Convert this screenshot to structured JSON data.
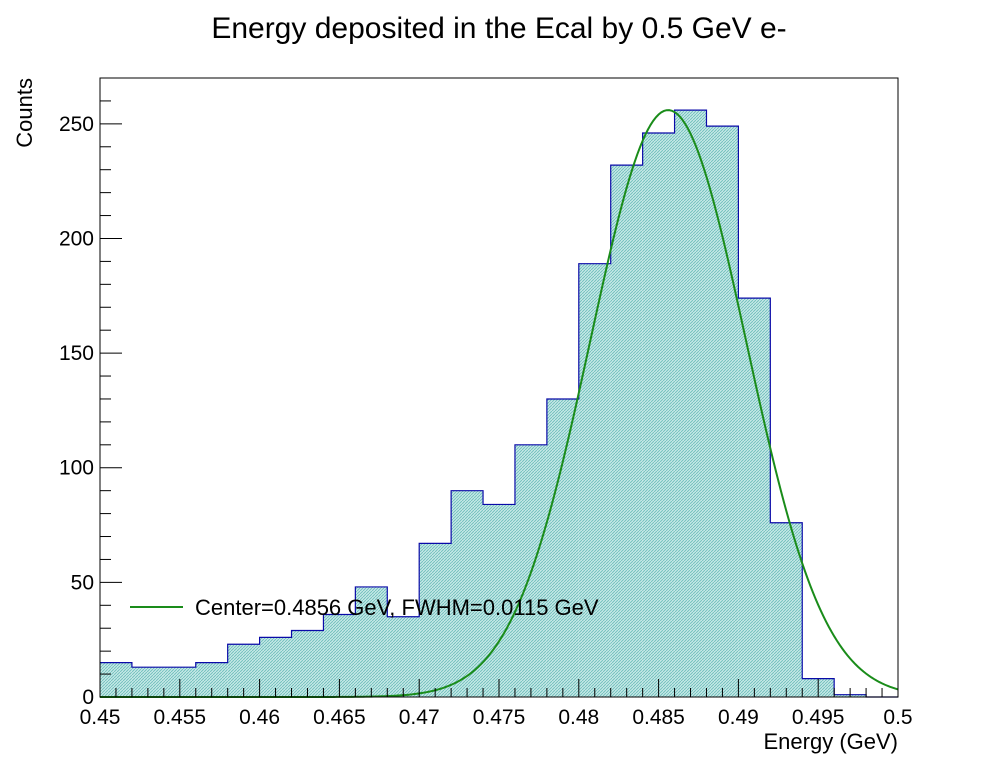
{
  "chart_data": {
    "type": "bar",
    "title": "Energy deposited in the Ecal by 0.5 GeV e-",
    "xlabel": "Energy (GeV)",
    "ylabel": "Counts",
    "xlim": [
      0.45,
      0.5
    ],
    "ylim": [
      0,
      270
    ],
    "grid": false,
    "bin_width": 0.002,
    "bin_edges_start": 0.45,
    "x_ticks": [
      "0.45",
      "0.455",
      "0.46",
      "0.465",
      "0.47",
      "0.475",
      "0.48",
      "0.485",
      "0.49",
      "0.495",
      "0.5"
    ],
    "y_ticks": [
      "0",
      "50",
      "100",
      "150",
      "200",
      "250"
    ],
    "series": [
      {
        "kind": "histogram",
        "values": [
          15,
          13,
          13,
          15,
          23,
          26,
          29,
          36,
          48,
          35,
          67,
          90,
          84,
          110,
          130,
          189,
          232,
          246,
          256,
          249,
          174,
          76,
          8,
          1,
          0
        ],
        "line_color": "#0a0aa8",
        "fill_color": "#9fd8d6"
      },
      {
        "name": "Center=0.4856 GeV, FWHM=0.0115 GeV",
        "kind": "gaussian_fit",
        "amplitude": 256,
        "center": 0.4856,
        "fwhm": 0.0115,
        "x_range": [
          0.45,
          0.5
        ],
        "color": "#1a8c1a"
      }
    ],
    "legend": {
      "entries": [
        "Center=0.4856 GeV, FWHM=0.0115 GeV"
      ],
      "placement": "bottom-left"
    }
  }
}
